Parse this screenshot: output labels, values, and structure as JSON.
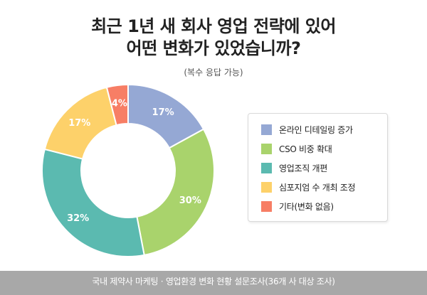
{
  "title": {
    "line1": "최근 1년 새 회사 영업 전략에 있어",
    "line2": "어떤 변화가 있었습니까?"
  },
  "subtitle": "(복수 응답 가능)",
  "footer": "국내 제약사 마케팅 · 영업환경 변화 현황 설문조사(36개 사 대상 조사)",
  "chart_data": {
    "type": "pie",
    "donut": true,
    "legend_position": "right",
    "categories": [
      "온라인 디테일링 증가",
      "CSO 비중 확대",
      "영업조직 개편",
      "심포지엄 수 개최 조정",
      "기타(변화 없음)"
    ],
    "values": [
      17,
      30,
      32,
      17,
      4
    ],
    "labels": [
      "17%",
      "30%",
      "32%",
      "17%",
      "4%"
    ],
    "colors": [
      "#95a8d4",
      "#a9d36c",
      "#5bbab0",
      "#fdd16a",
      "#f77e65"
    ]
  }
}
